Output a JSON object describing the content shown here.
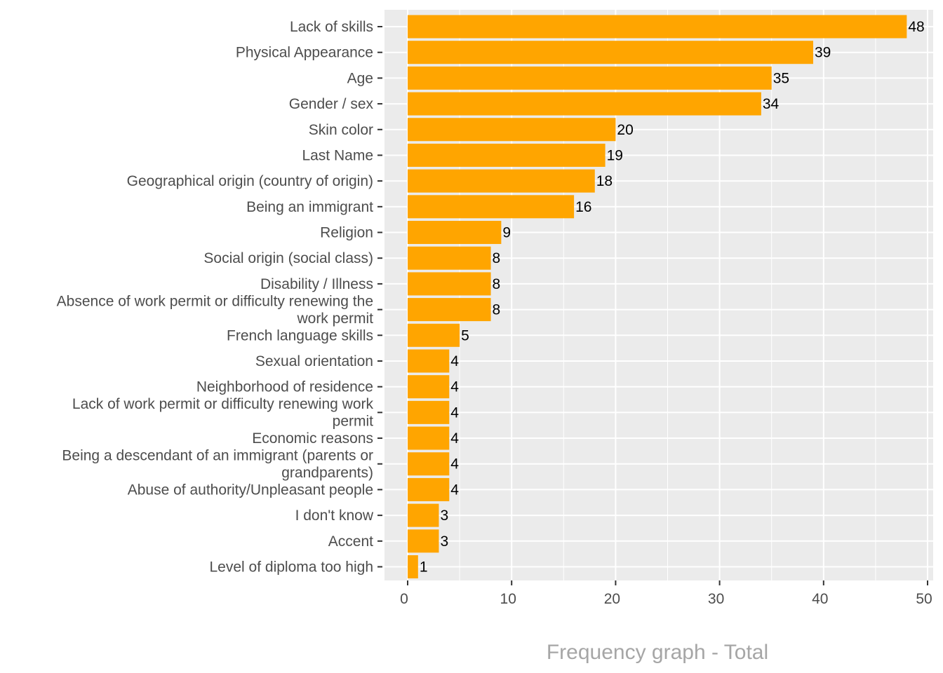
{
  "chart_data": {
    "type": "bar",
    "orientation": "horizontal",
    "title": "",
    "xlabel": "Frequency graph - Total",
    "ylabel": "",
    "xlim": [
      0,
      50
    ],
    "x_ticks": [
      0,
      10,
      20,
      30,
      40,
      50
    ],
    "grid": true,
    "bar_color": "#FFA500",
    "panel_color": "#EBEBEB",
    "categories": [
      [
        "Lack of skills"
      ],
      [
        "Physical Appearance"
      ],
      [
        "Age"
      ],
      [
        "Gender / sex"
      ],
      [
        "Skin color"
      ],
      [
        "Last Name"
      ],
      [
        "Geographical origin (country of origin)"
      ],
      [
        "Being an immigrant"
      ],
      [
        "Religion"
      ],
      [
        "Social origin (social class)"
      ],
      [
        "Disability / Illness"
      ],
      [
        "Absence of work permit or difficulty renewing the",
        "work permit"
      ],
      [
        "French language skills"
      ],
      [
        "Sexual orientation"
      ],
      [
        "Neighborhood of residence"
      ],
      [
        "Lack of work permit or difficulty renewing work",
        "permit"
      ],
      [
        "Economic reasons"
      ],
      [
        "Being a descendant of an immigrant (parents or",
        "grandparents)"
      ],
      [
        "Abuse of authority/Unpleasant people"
      ],
      [
        "I don't know"
      ],
      [
        "Accent"
      ],
      [
        "Level of diploma too high"
      ]
    ],
    "values": [
      48,
      39,
      35,
      34,
      20,
      19,
      18,
      16,
      9,
      8,
      8,
      8,
      5,
      4,
      4,
      4,
      4,
      4,
      4,
      3,
      3,
      1
    ]
  }
}
